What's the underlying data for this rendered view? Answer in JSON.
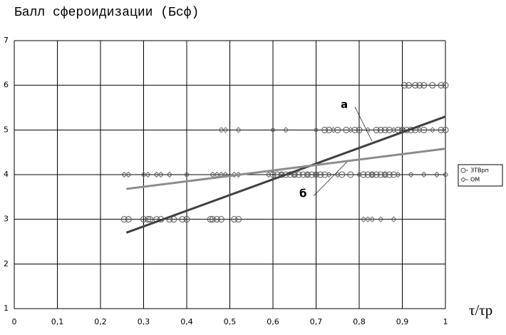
{
  "chart_data": {
    "type": "scatter",
    "title": "Балл сфероидизации (Бсф)",
    "x_label": "τ/τр",
    "xlim": [
      0,
      1
    ],
    "ylim": [
      1,
      7
    ],
    "xticks": [
      0,
      {
        "value": 0.1,
        "label": "0,1"
      },
      {
        "value": 0.2,
        "label": "0,2"
      },
      {
        "value": 0.3,
        "label": "0,3"
      },
      {
        "value": 0.4,
        "label": "0,4"
      },
      {
        "value": 0.5,
        "label": "0,5"
      },
      {
        "value": 0.6,
        "label": "0,6"
      },
      {
        "value": 0.7,
        "label": "0,7"
      },
      {
        "value": 0.8,
        "label": "0,8"
      },
      {
        "value": 0.9,
        "label": "0,9"
      },
      1
    ],
    "yticks": [
      1,
      2,
      3,
      4,
      5,
      6,
      7
    ],
    "grid": true,
    "legend": "right",
    "series": [
      {
        "name": "ЗТВрп",
        "marker": "circle",
        "color": "#555555",
        "x": [
          0.255,
          0.265,
          0.3,
          0.31,
          0.315,
          0.33,
          0.34,
          0.36,
          0.37,
          0.39,
          0.4,
          0.455,
          0.46,
          0.47,
          0.48,
          0.51,
          0.52,
          0.6,
          0.61,
          0.62,
          0.63,
          0.64,
          0.65,
          0.66,
          0.67,
          0.68,
          0.69,
          0.7,
          0.71,
          0.72,
          0.76,
          0.78,
          0.81,
          0.82,
          0.83,
          0.84,
          0.85,
          0.86,
          0.87,
          0.88,
          0.72,
          0.73,
          0.75,
          0.77,
          0.79,
          0.8,
          0.84,
          0.85,
          0.86,
          0.87,
          0.89,
          0.9,
          0.91,
          0.92,
          0.93,
          0.95,
          0.99,
          1.0,
          0.905,
          0.915,
          0.93,
          0.94,
          0.95,
          0.97,
          0.99,
          1.0
        ],
        "values": [
          3,
          3,
          3,
          3,
          3,
          3,
          3,
          3,
          3,
          3,
          3,
          3,
          3,
          3,
          3,
          3,
          3,
          4,
          4,
          4,
          4,
          4,
          4,
          4,
          4,
          4,
          4,
          4,
          4,
          4,
          4,
          4,
          4,
          4,
          4,
          4,
          4,
          4,
          4,
          4,
          5,
          5,
          5,
          5,
          5,
          5,
          5,
          5,
          5,
          5,
          5,
          5,
          5,
          5,
          5,
          5,
          5,
          5,
          6,
          6,
          6,
          6,
          6,
          6,
          6,
          6
        ]
      },
      {
        "name": "ОМ",
        "marker": "diamond",
        "color": "#666666",
        "x": [
          0.81,
          0.82,
          0.83,
          0.85,
          0.88,
          0.255,
          0.265,
          0.3,
          0.31,
          0.33,
          0.34,
          0.36,
          0.4,
          0.46,
          0.47,
          0.48,
          0.49,
          0.51,
          0.52,
          0.59,
          0.62,
          0.65,
          0.68,
          0.7,
          0.73,
          0.75,
          0.8,
          0.83,
          0.86,
          0.89,
          0.92,
          0.95,
          0.98,
          1.0,
          0.48,
          0.49,
          0.52,
          0.6,
          0.63,
          0.7,
          0.74,
          0.78,
          0.82,
          0.88,
          0.9,
          0.94,
          0.97
        ],
        "values": [
          3,
          3,
          3,
          3,
          3,
          4,
          4,
          4,
          4,
          4,
          4,
          4,
          4,
          4,
          4,
          4,
          4,
          4,
          4,
          4,
          4,
          4,
          4,
          4,
          4,
          4,
          4,
          4,
          4,
          4,
          4,
          4,
          4,
          4,
          5,
          5,
          5,
          5,
          5,
          5,
          5,
          5,
          5,
          5,
          5,
          5,
          5
        ]
      }
    ],
    "trend_lines": [
      {
        "label": "а",
        "color": "#404040",
        "x": [
          0.26,
          1
        ],
        "values": [
          2.7,
          5.3
        ]
      },
      {
        "label": "б",
        "color": "#8c8c8c",
        "x": [
          0.26,
          1
        ],
        "values": [
          3.68,
          4.58
        ]
      }
    ]
  }
}
